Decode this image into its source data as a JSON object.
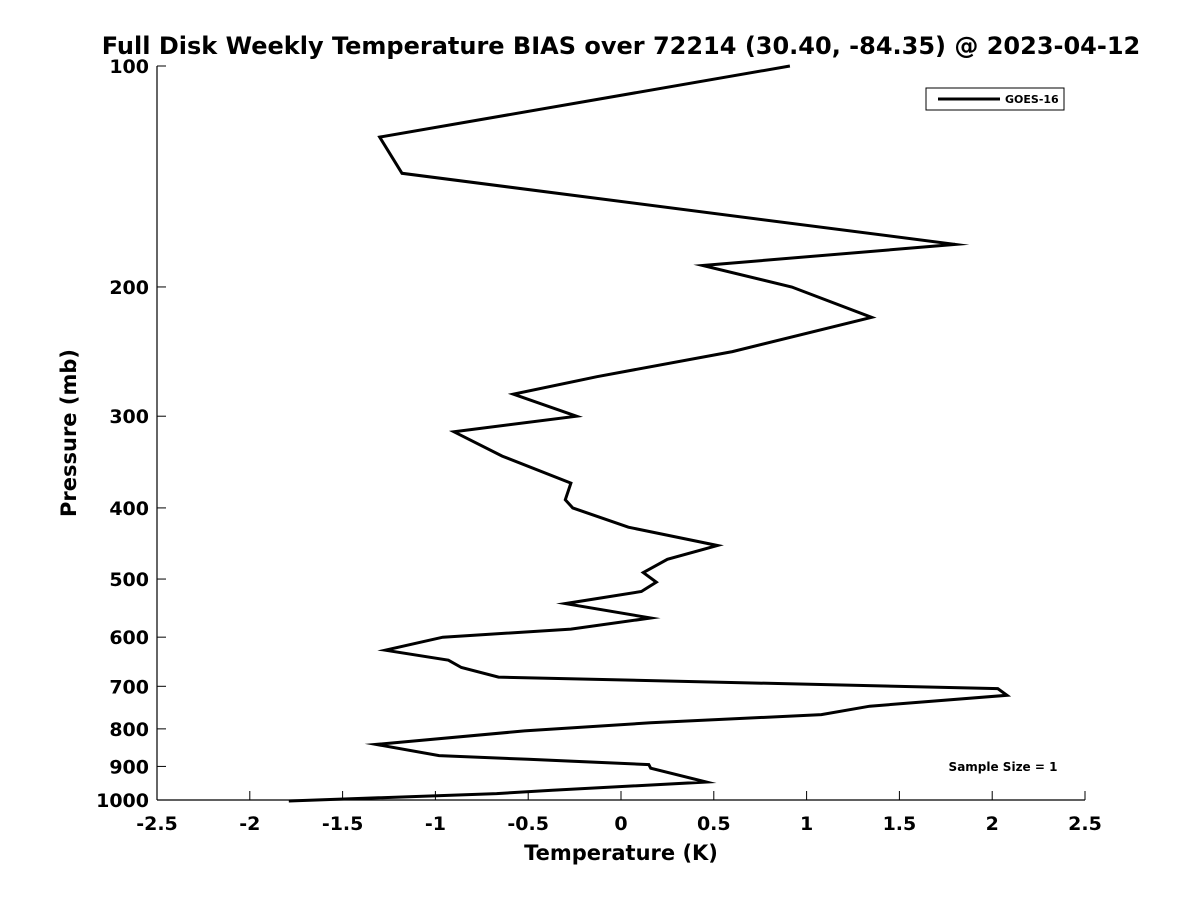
{
  "chart_data": {
    "type": "line",
    "title": "Full Disk Weekly Temperature BIAS over 72214 (30.40, -84.35) @ 2023-04-12",
    "xlabel": "Temperature (K)",
    "ylabel": "Pressure (mb)",
    "xlim": [
      -2.5,
      2.5
    ],
    "ylim": [
      100,
      1000
    ],
    "yscale": "log",
    "yreversed": true,
    "xticks": [
      -2.5,
      -2,
      -1.5,
      -1,
      -0.5,
      0,
      0.5,
      1,
      1.5,
      2,
      2.5
    ],
    "xtick_labels": [
      "-2.5",
      "-2",
      "-1.5",
      "-1",
      "-0.5",
      "0",
      "0.5",
      "1",
      "1.5",
      "2",
      "2.5"
    ],
    "yticks": [
      100,
      200,
      300,
      400,
      500,
      600,
      700,
      800,
      900,
      1000
    ],
    "ytick_labels": [
      "100",
      "200",
      "300",
      "400",
      "500",
      "600",
      "700",
      "800",
      "900",
      "1000"
    ],
    "grid": false,
    "legend_position": "top-right",
    "annotation": "Sample Size = 1",
    "series": [
      {
        "name": "GOES-16",
        "color": "#000000",
        "x": [
          0.91,
          -1.3,
          -1.18,
          1.8,
          0.44,
          0.92,
          1.35,
          0.6,
          -0.13,
          -0.58,
          -0.24,
          -0.9,
          -0.64,
          -0.27,
          -0.3,
          -0.26,
          0.04,
          0.52,
          0.25,
          0.12,
          0.19,
          0.11,
          -0.3,
          0.16,
          -0.27,
          -0.96,
          -1.27,
          -0.93,
          -0.86,
          -0.66,
          2.03,
          2.08,
          1.34,
          1.08,
          0.16,
          -0.52,
          -1.32,
          -0.98,
          -0.5,
          0.15,
          0.16,
          0.46,
          -0.37,
          -0.67,
          -1.79
        ],
        "y": [
          100,
          125,
          140,
          175,
          187,
          200,
          220,
          245,
          265,
          280,
          300,
          315,
          340,
          370,
          390,
          400,
          425,
          450,
          470,
          490,
          505,
          520,
          540,
          565,
          585,
          600,
          625,
          645,
          660,
          680,
          705,
          720,
          745,
          765,
          785,
          805,
          840,
          870,
          880,
          895,
          905,
          945,
          970,
          980,
          1003
        ]
      }
    ]
  }
}
